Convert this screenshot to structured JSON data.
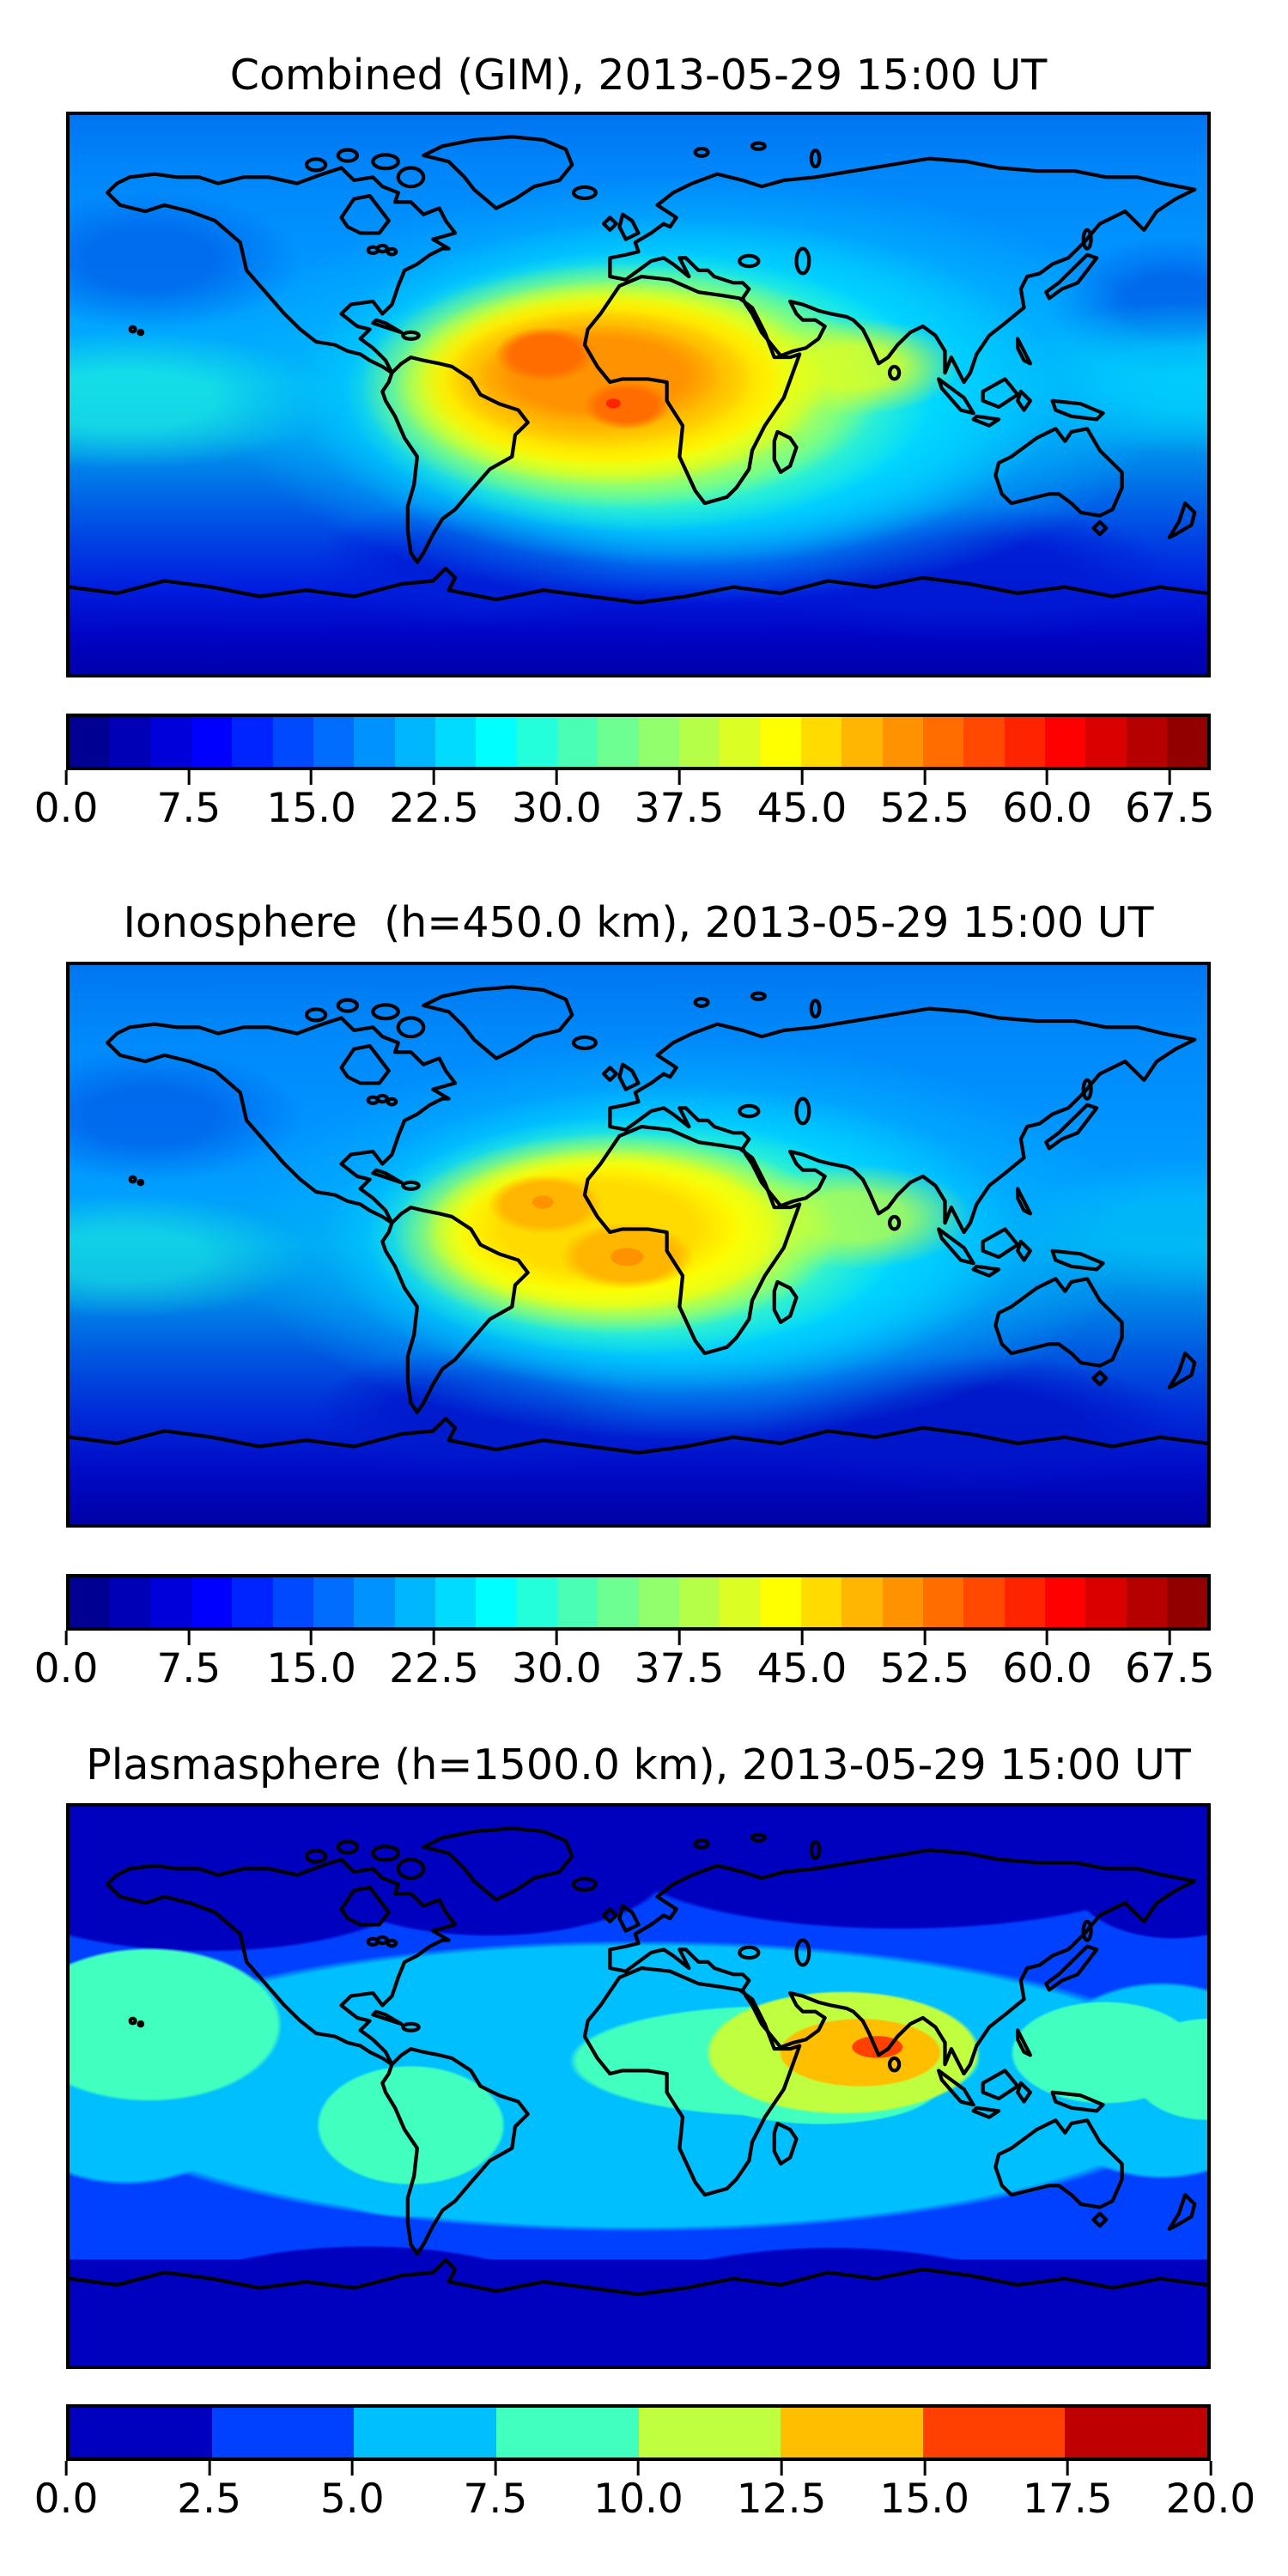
{
  "panels": [
    {
      "title": "Combined (GIM), 2013-05-29 15:00 UT"
    },
    {
      "title": "Ionosphere  (h=450.0 km), 2013-05-29 15:00 UT"
    },
    {
      "title": "Plasmasphere (h=1500.0 km), 2013-05-29 15:00 UT"
    }
  ],
  "chart_data": [
    {
      "type": "heatmap",
      "kind": "filled-contour global map (equirectangular, lon -180..180, lat -90..90)",
      "title": "Combined (GIM), 2013-05-29 15:00 UT",
      "colormap": "jet",
      "value_range": [
        0,
        70
      ],
      "contour_interval": 2.5,
      "colorbar": {
        "orientation": "horizontal",
        "max": 70,
        "ticks": [
          "0.0",
          "7.5",
          "15.0",
          "22.5",
          "30.0",
          "37.5",
          "45.0",
          "52.5",
          "60.0",
          "67.5"
        ],
        "segment_colors": [
          "#000092",
          "#0000B6",
          "#0000DB",
          "#0000FF",
          "#0024FF",
          "#0049FF",
          "#006DFF",
          "#0092FF",
          "#00B6FF",
          "#00DBFF",
          "#00FFFF",
          "#24FFDB",
          "#49FFB6",
          "#6DFF92",
          "#92FF6D",
          "#B6FF49",
          "#DBFF24",
          "#FFFF00",
          "#FFDB00",
          "#FFB600",
          "#FF9200",
          "#FF6D00",
          "#FF4900",
          "#FF2400",
          "#FF0000",
          "#DB0000",
          "#B60000",
          "#920000"
        ]
      },
      "features": [
        {
          "region": "double-core ionization hotspot over West Africa / tropical Atlantic",
          "approx_peak_value": 65,
          "cores": [
            {
              "lon": -27,
              "lat": 13,
              "value": 60
            },
            {
              "lon": -5,
              "lat": -2,
              "value": 65
            }
          ]
        },
        {
          "region": "elevated ridge extending east across North Africa, Arabia and India",
          "approx_value": "25-40"
        },
        {
          "region": "northern mid and high latitudes",
          "approx_value": "12.5-20"
        },
        {
          "region": "southern mid latitudes and Southern Ocean",
          "approx_value": "2.5-10"
        }
      ]
    },
    {
      "type": "heatmap",
      "kind": "filled-contour global map (equirectangular, lon -180..180, lat -90..90)",
      "title": "Ionosphere  (h=450.0 km), 2013-05-29 15:00 UT",
      "colormap": "jet",
      "value_range": [
        0,
        70
      ],
      "contour_interval": 2.5,
      "colorbar": {
        "orientation": "horizontal",
        "max": 70,
        "ticks": [
          "0.0",
          "7.5",
          "15.0",
          "22.5",
          "30.0",
          "37.5",
          "45.0",
          "52.5",
          "60.0",
          "67.5"
        ],
        "segment_colors": [
          "#000092",
          "#0000B6",
          "#0000DB",
          "#0000FF",
          "#0024FF",
          "#0049FF",
          "#006DFF",
          "#0092FF",
          "#00B6FF",
          "#00DBFF",
          "#00FFFF",
          "#24FFDB",
          "#49FFB6",
          "#6DFF92",
          "#92FF6D",
          "#B6FF49",
          "#DBFF24",
          "#FFFF00",
          "#FFDB00",
          "#FFB600",
          "#FF9200",
          "#FF6D00",
          "#FF4900",
          "#FF2400",
          "#FF0000",
          "#DB0000",
          "#B60000",
          "#920000"
        ]
      },
      "features": [
        {
          "region": "double-core hotspot over West Africa / tropical Atlantic (weaker than GIM)",
          "approx_peak_value": 50,
          "cores": [
            {
              "lon": -27,
              "lat": 13,
              "value": 47.5
            },
            {
              "lon": -5,
              "lat": -2,
              "value": 50
            }
          ]
        },
        {
          "region": "yellow-green ridge toward India",
          "approx_value": "25-37.5"
        },
        {
          "region": "northern mid and high latitudes",
          "approx_value": "12.5-20"
        },
        {
          "region": "southern mid latitudes and Southern Ocean",
          "approx_value": "2.5-10"
        }
      ]
    },
    {
      "type": "heatmap",
      "kind": "filled-contour global map (equirectangular, lon -180..180, lat -90..90)",
      "title": "Plasmasphere (h=1500.0 km), 2013-05-29 15:00 UT",
      "colormap": "jet",
      "value_range": [
        0,
        20
      ],
      "contour_interval": 2.5,
      "colorbar": {
        "orientation": "horizontal",
        "max": 20,
        "ticks": [
          "0.0",
          "2.5",
          "5.0",
          "7.5",
          "10.0",
          "12.5",
          "15.0",
          "17.5",
          "20.0"
        ],
        "segment_colors": [
          "#0000BF",
          "#0040FF",
          "#00BFFF",
          "#40FFBF",
          "#BFFF40",
          "#FFBF00",
          "#FF4000",
          "#BF0000"
        ]
      },
      "features": [
        {
          "region": "peak over Arabian Sea / India",
          "approx_peak_value": 16,
          "cores": [
            {
              "lon": 70,
              "lat": 11,
              "value": 16
            }
          ]
        },
        {
          "region": "equatorial plasmaspheric band circling the globe",
          "approx_value": "7.5-12.5"
        },
        {
          "region": "mid-latitude blue bands",
          "approx_value": "2.5-7.5"
        },
        {
          "region": "high latitudes north and south",
          "approx_value": "0-2.5"
        }
      ]
    }
  ]
}
